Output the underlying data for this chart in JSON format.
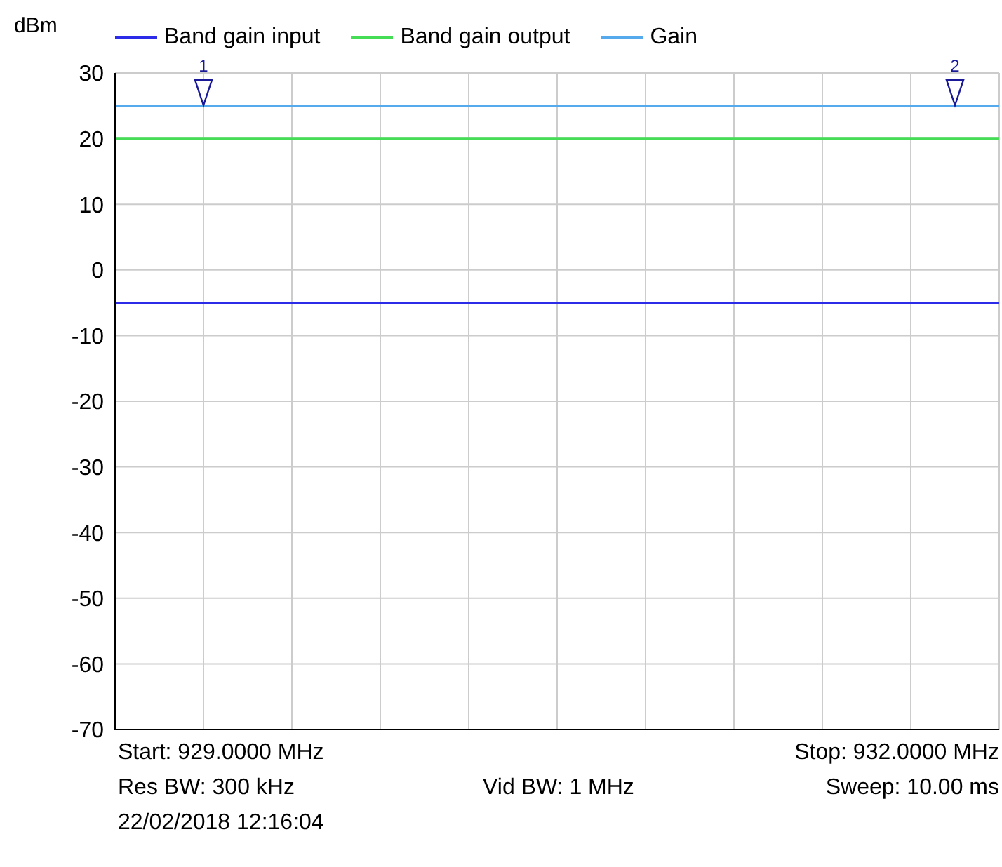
{
  "chart_data": {
    "type": "line",
    "ylabel": "dBm",
    "categories": [
      null,
      null,
      null,
      null,
      null,
      null,
      null,
      null,
      null,
      null,
      null,
      null,
      null,
      null,
      null,
      null,
      null,
      null,
      null,
      null,
      null
    ],
    "series": [
      {
        "name": "Band gain input",
        "color": "#2b2be8",
        "values": [
          -5,
          -5,
          -5,
          -5,
          -5,
          -5,
          -5,
          -5,
          -5,
          -5,
          -5,
          -5,
          -5,
          -5,
          -5,
          -5,
          -5,
          -5,
          -5,
          -5,
          -5
        ]
      },
      {
        "name": "Band gain output",
        "color": "#44dd55",
        "values": [
          20,
          20,
          20,
          20,
          20,
          20,
          20,
          20,
          20,
          20,
          20,
          20,
          20,
          20,
          20,
          20,
          20,
          20,
          20,
          20,
          20
        ]
      },
      {
        "name": "Gain",
        "color": "#55aaee",
        "values": [
          25,
          25,
          25,
          25,
          25,
          25,
          25,
          25,
          25,
          25,
          25,
          25,
          25,
          25,
          25,
          25,
          25,
          25,
          25,
          25,
          25
        ]
      },
      {
        "type": "scatter",
        "color": "#1a1a99",
        "marker": "triangle",
        "values": [
          null,
          null,
          27,
          null,
          null,
          null,
          null,
          null,
          null,
          null,
          null,
          null,
          null,
          null,
          null,
          null,
          null,
          null,
          null,
          27,
          null
        ]
      }
    ],
    "ylim": [
      -70,
      30
    ],
    "yticks": [
      -70,
      -60,
      -50,
      -40,
      -30,
      -20,
      -10,
      0,
      10,
      20,
      30
    ],
    "grid": true,
    "legend": "top left",
    "marker": "none",
    "line_style": "solid",
    "annotations": [
      "Start: 929.0000 MHz",
      "Stop: 932.0000 MHz",
      "Res BW: 300 kHz",
      "Vid BW: 1 MHz",
      "Sweep: 10.00 ms",
      "22/02/2018 12:16:04",
      {
        "text": "1",
        "y": 27
      },
      {
        "text": "2",
        "y": 27
      }
    ]
  }
}
